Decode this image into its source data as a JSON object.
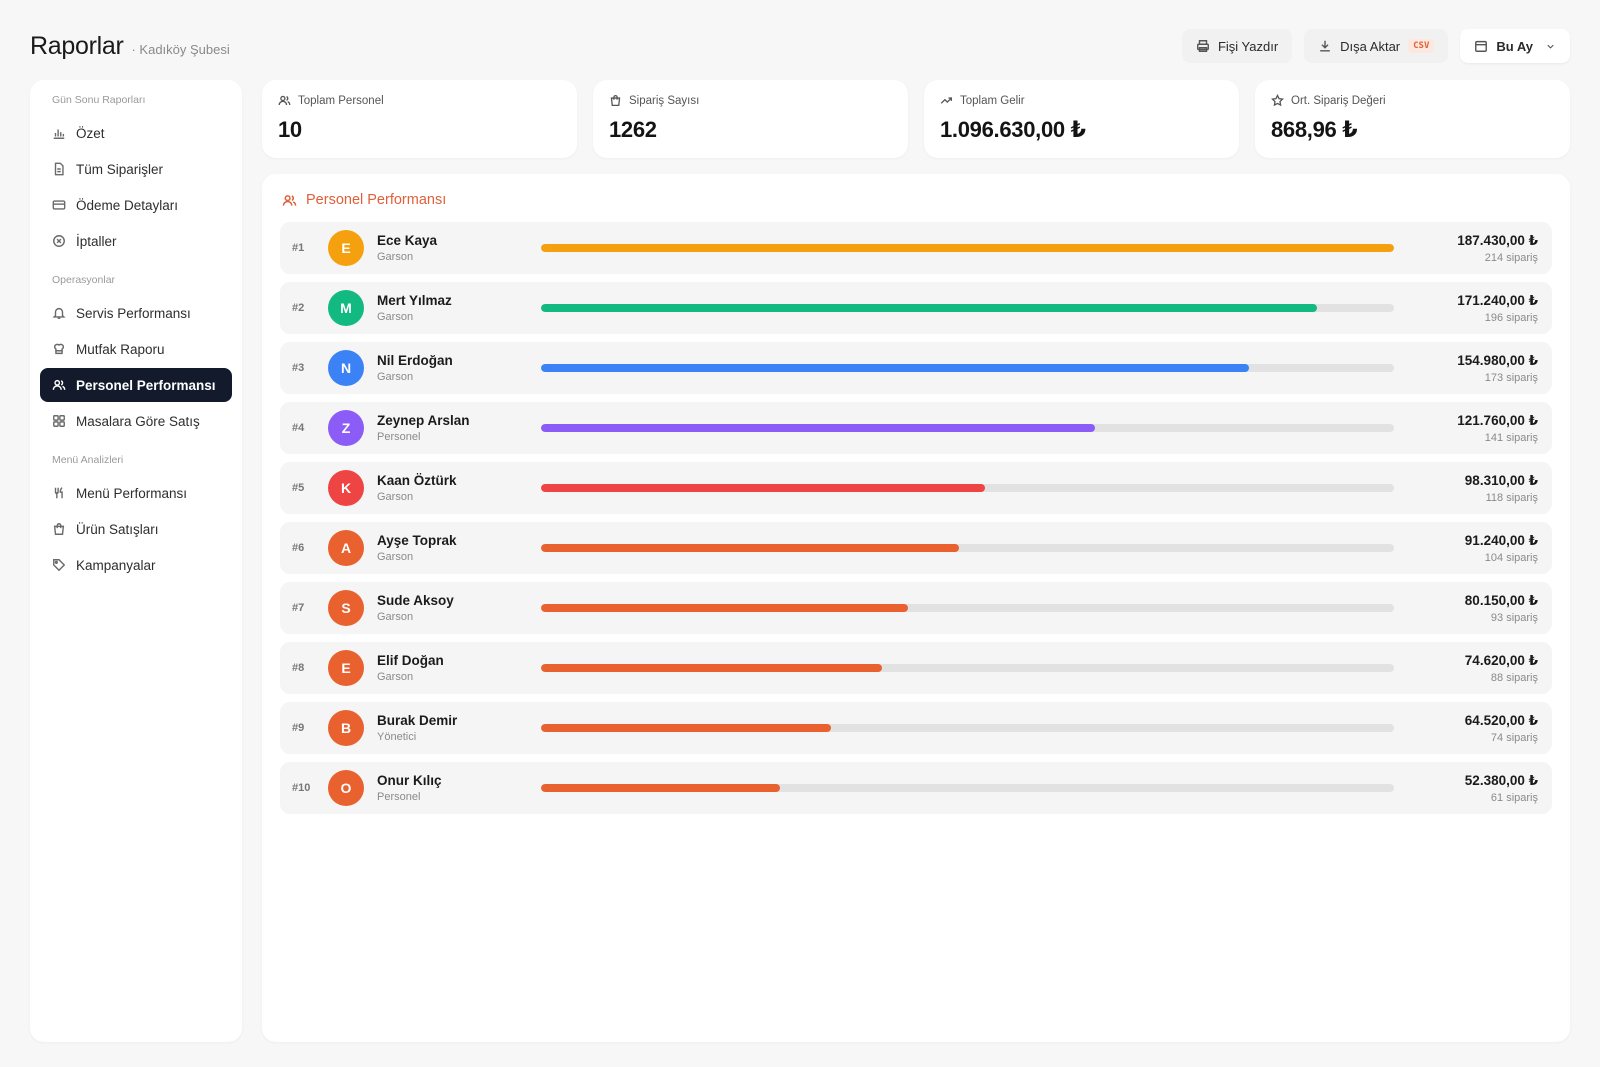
{
  "header": {
    "title": "Raporlar",
    "subtitle": "· Kadıköy Şubesi",
    "print_label": "Fişi Yazdır",
    "export_label": "Dışa Aktar",
    "export_badge": "CSV",
    "period_label": "Bu Ay"
  },
  "sidebar": {
    "sections": [
      {
        "title": "Gün Sonu Raporları",
        "items": [
          {
            "label": "Özet",
            "icon": "bar-chart-icon"
          },
          {
            "label": "Tüm Siparişler",
            "icon": "document-icon"
          },
          {
            "label": "Ödeme Detayları",
            "icon": "credit-card-icon"
          },
          {
            "label": "İptaller",
            "icon": "cancel-circle-icon"
          }
        ]
      },
      {
        "title": "Operasyonlar",
        "items": [
          {
            "label": "Servis Performansı",
            "icon": "bell-icon"
          },
          {
            "label": "Mutfak Raporu",
            "icon": "chef-hat-icon"
          },
          {
            "label": "Personel Performansı",
            "icon": "users-icon",
            "active": true
          },
          {
            "label": "Masalara Göre Satış",
            "icon": "grid-icon"
          }
        ]
      },
      {
        "title": "Menü Analizleri",
        "items": [
          {
            "label": "Menü Performansı",
            "icon": "utensils-icon"
          },
          {
            "label": "Ürün Satışları",
            "icon": "shopping-bag-icon"
          },
          {
            "label": "Kampanyalar",
            "icon": "tag-icon"
          }
        ]
      }
    ]
  },
  "stats": [
    {
      "label": "Toplam Personel",
      "value": "10",
      "icon": "users-icon"
    },
    {
      "label": "Sipariş Sayısı",
      "value": "1262",
      "icon": "shopping-bag-icon"
    },
    {
      "label": "Toplam Gelir",
      "value": "1.096.630,00 ₺",
      "icon": "trending-up-icon"
    },
    {
      "label": "Ort. Sipariş Değeri",
      "value": "868,96 ₺",
      "icon": "star-icon"
    }
  ],
  "panel": {
    "title": "Personel Performansı"
  },
  "colors": {
    "accent": "#e0603a",
    "nav_active": "#121a2c"
  },
  "staff": [
    {
      "rank": "#1",
      "initial": "E",
      "name": "Ece Kaya",
      "role": "Garson",
      "amount": "187.430,00 ₺",
      "orders": "214 sipariş",
      "share": 1.0,
      "color": "#f5a00f"
    },
    {
      "rank": "#2",
      "initial": "M",
      "name": "Mert Yılmaz",
      "role": "Garson",
      "amount": "171.240,00 ₺",
      "orders": "196 sipariş",
      "share": 0.91,
      "color": "#12b981"
    },
    {
      "rank": "#3",
      "initial": "N",
      "name": "Nil Erdoğan",
      "role": "Garson",
      "amount": "154.980,00 ₺",
      "orders": "173 sipariş",
      "share": 0.83,
      "color": "#3b82f6"
    },
    {
      "rank": "#4",
      "initial": "Z",
      "name": "Zeynep Arslan",
      "role": "Personel",
      "amount": "121.760,00 ₺",
      "orders": "141 sipariş",
      "share": 0.65,
      "color": "#8b5cf6"
    },
    {
      "rank": "#5",
      "initial": "K",
      "name": "Kaan Öztürk",
      "role": "Garson",
      "amount": "98.310,00 ₺",
      "orders": "118 sipariş",
      "share": 0.52,
      "color": "#ef4444"
    },
    {
      "rank": "#6",
      "initial": "A",
      "name": "Ayşe Toprak",
      "role": "Garson",
      "amount": "91.240,00 ₺",
      "orders": "104 sipariş",
      "share": 0.49,
      "color": "#e8612f"
    },
    {
      "rank": "#7",
      "initial": "S",
      "name": "Sude Aksoy",
      "role": "Garson",
      "amount": "80.150,00 ₺",
      "orders": "93 sipariş",
      "share": 0.43,
      "color": "#e8612f"
    },
    {
      "rank": "#8",
      "initial": "E",
      "name": "Elif Doğan",
      "role": "Garson",
      "amount": "74.620,00 ₺",
      "orders": "88 sipariş",
      "share": 0.4,
      "color": "#e8612f"
    },
    {
      "rank": "#9",
      "initial": "B",
      "name": "Burak Demir",
      "role": "Yönetici",
      "amount": "64.520,00 ₺",
      "orders": "74 sipariş",
      "share": 0.34,
      "color": "#e8612f"
    },
    {
      "rank": "#10",
      "initial": "O",
      "name": "Onur Kılıç",
      "role": "Personel",
      "amount": "52.380,00 ₺",
      "orders": "61 sipariş",
      "share": 0.28,
      "color": "#e8612f"
    }
  ]
}
